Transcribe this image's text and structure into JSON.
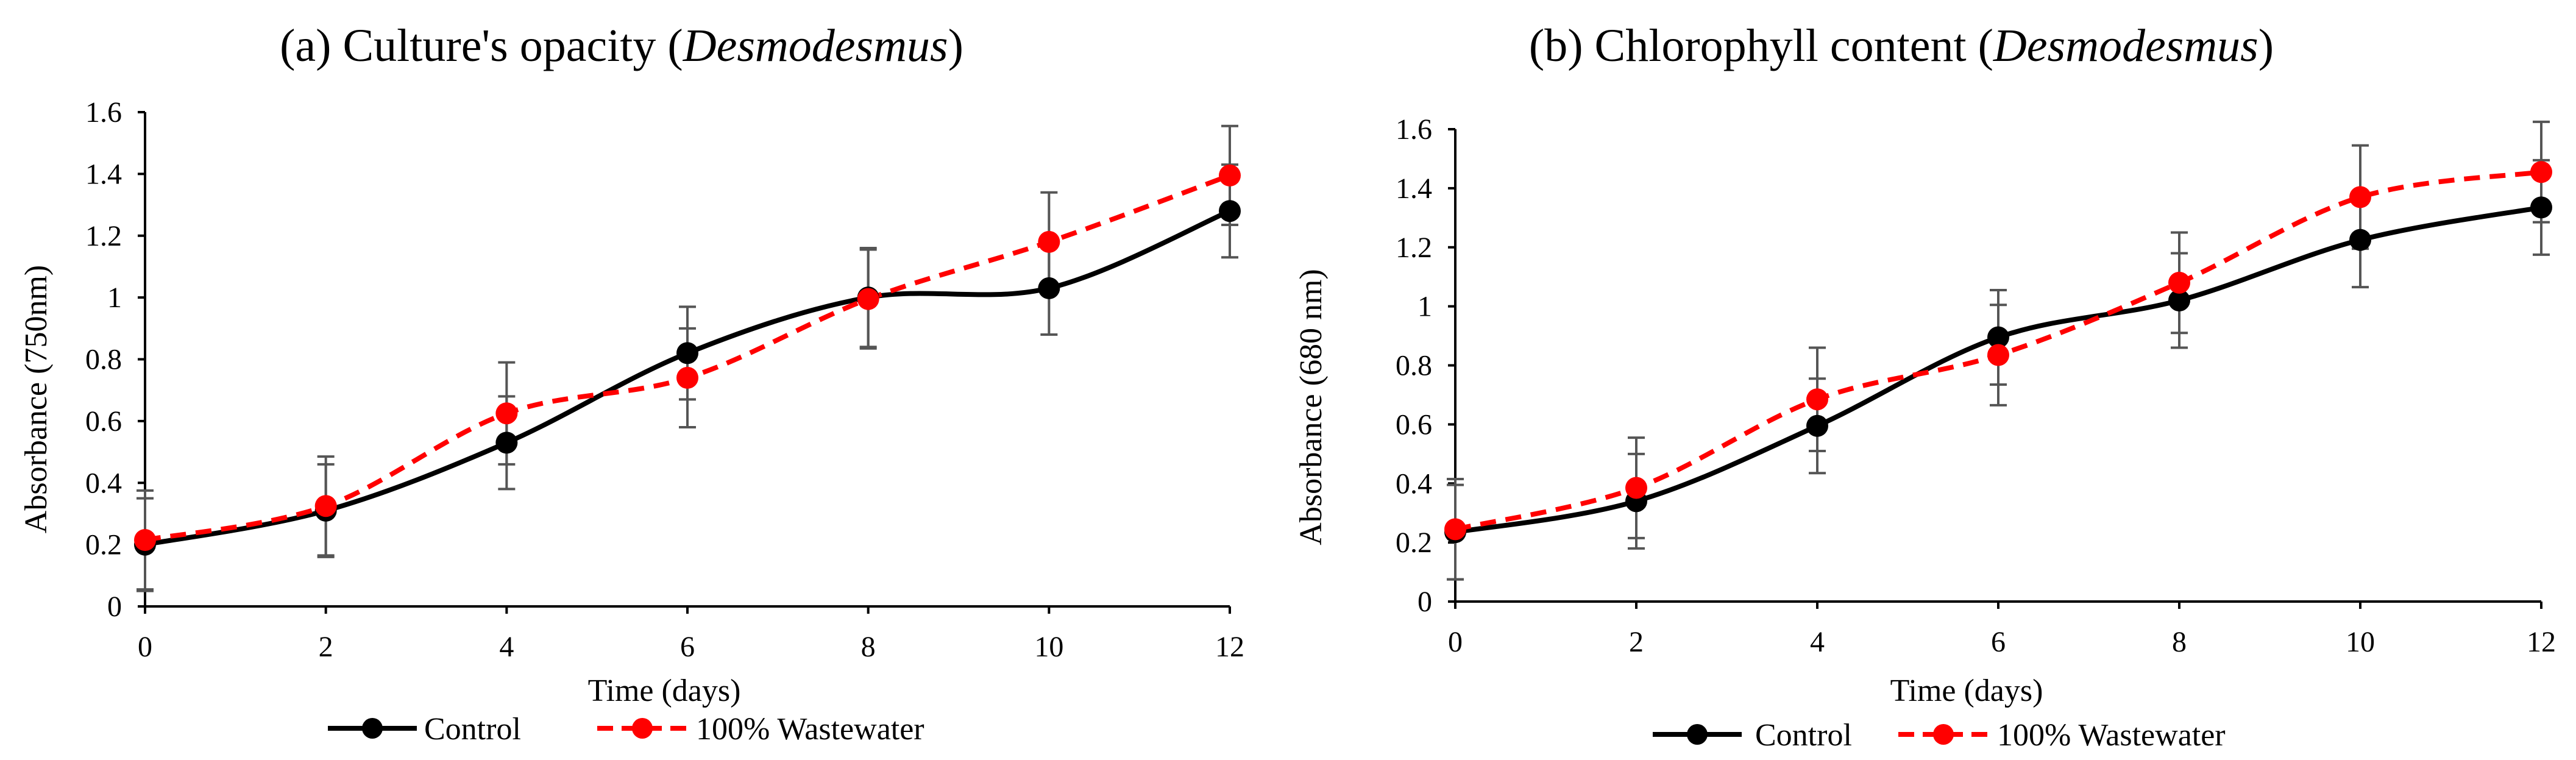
{
  "chart_data": [
    {
      "type": "line",
      "title": "(a) Culture's opacity",
      "title_species": "Desmodesmus",
      "xlabel": "Time (days)",
      "ylabel": "Absorbance (750nm)",
      "x": [
        0,
        2,
        4,
        6,
        8,
        10,
        12
      ],
      "xlim": [
        0,
        12
      ],
      "ylim": [
        0,
        1.6
      ],
      "xticks": [
        0,
        2,
        4,
        6,
        8,
        10,
        12
      ],
      "yticks": [
        0,
        0.2,
        0.4,
        0.6,
        0.8,
        1,
        1.2,
        1.4,
        1.6
      ],
      "ytick_labels": [
        "0",
        "0.2",
        "0.4",
        "0.6",
        "0.8",
        "1",
        "1.2",
        "1.4",
        "1.6"
      ],
      "grid": false,
      "legend_position": "bottom",
      "series": [
        {
          "name": "Control",
          "color": "#000000",
          "dash": "solid",
          "values": [
            0.2,
            0.31,
            0.53,
            0.82,
            1.0,
            1.03,
            1.28
          ],
          "errors": [
            0.15,
            0.15,
            0.15,
            0.15,
            0.16,
            0.15,
            0.15
          ]
        },
        {
          "name": "100% Wastewater",
          "color": "#ff0000",
          "dash": "dashed",
          "values": [
            0.215,
            0.325,
            0.625,
            0.74,
            0.995,
            1.18,
            1.395
          ],
          "errors": [
            0.16,
            0.16,
            0.165,
            0.16,
            0.16,
            0.16,
            0.16
          ]
        }
      ]
    },
    {
      "type": "line",
      "title": "(b) Chlorophyll content",
      "title_species": "Desmodesmus",
      "xlabel": "Time (days)",
      "ylabel": "Absorbance (680 nm)",
      "x": [
        0,
        2,
        4,
        6,
        8,
        10,
        12
      ],
      "xlim": [
        0,
        12
      ],
      "ylim": [
        0,
        1.6
      ],
      "xticks": [
        0,
        2,
        4,
        6,
        8,
        10,
        12
      ],
      "yticks": [
        0,
        0.2,
        0.4,
        0.6,
        0.8,
        1,
        1.2,
        1.4,
        1.6
      ],
      "ytick_labels": [
        "0",
        "0.2",
        "0.4",
        "0.6",
        "0.8",
        "1",
        "1.2",
        "1.4",
        "1.6"
      ],
      "grid": false,
      "legend_position": "bottom",
      "series": [
        {
          "name": "Control",
          "color": "#000000",
          "dash": "solid",
          "values": [
            0.235,
            0.34,
            0.595,
            0.895,
            1.02,
            1.225,
            1.335
          ],
          "errors": [
            0.16,
            0.16,
            0.16,
            0.16,
            0.16,
            0.16,
            0.16
          ]
        },
        {
          "name": "100% Wastewater",
          "color": "#ff0000",
          "dash": "dashed",
          "values": [
            0.245,
            0.385,
            0.685,
            0.835,
            1.08,
            1.37,
            1.455
          ],
          "errors": [
            0.17,
            0.17,
            0.175,
            0.17,
            0.17,
            0.175,
            0.17
          ]
        }
      ]
    }
  ]
}
